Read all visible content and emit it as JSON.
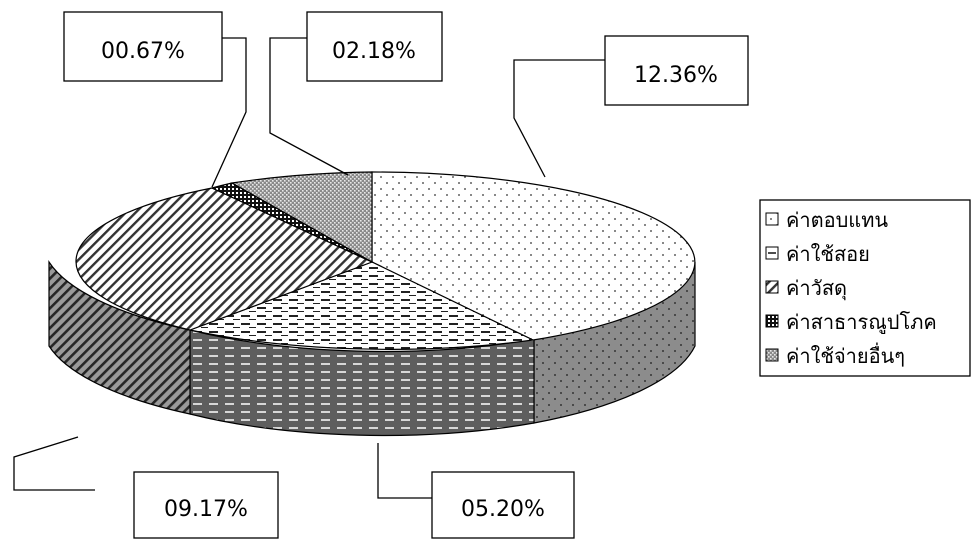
{
  "chart_data": {
    "type": "pie",
    "style": "3d-exploded-pie",
    "slices": [
      {
        "label": "ค่าตอบแทน",
        "value": 12.36,
        "display": "12.36%",
        "pattern": "dots"
      },
      {
        "label": "ค่าใช้สอย",
        "value": 5.2,
        "display": "05.20%",
        "pattern": "dashes"
      },
      {
        "label": "ค่าวัสดุ",
        "value": 9.17,
        "display": "09.17%",
        "pattern": "diagonal"
      },
      {
        "label": "ค่าสาธารณูปโภค",
        "value": 0.67,
        "display": "00.67%",
        "pattern": "checker-dark"
      },
      {
        "label": "ค่าใช้จ่ายอื่นๆ",
        "value": 2.18,
        "display": "02.18%",
        "pattern": "dense-dots"
      }
    ],
    "legend_position": "right"
  }
}
